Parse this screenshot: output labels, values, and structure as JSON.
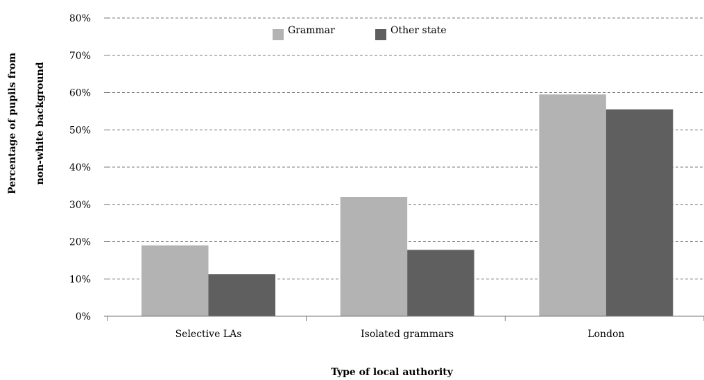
{
  "chart_data": {
    "type": "bar",
    "title": "",
    "xlabel": "Type of local authority",
    "ylabel_lines": [
      "Percentage of pupils from",
      "non-white background"
    ],
    "categories": [
      "Selective LAs",
      "Isolated grammars",
      "London"
    ],
    "series": [
      {
        "name": "Grammar",
        "values": [
          19,
          32,
          59.5
        ],
        "color": "#b3b3b3"
      },
      {
        "name": "Other state",
        "values": [
          11.3,
          17.8,
          55.5
        ],
        "color": "#5f5f5f"
      }
    ],
    "ylim": [
      0,
      80
    ],
    "yticks": [
      "0%",
      "10%",
      "20%",
      "30%",
      "40%",
      "50%",
      "60%",
      "70%",
      "80%"
    ],
    "grid": true,
    "legend_position": "top-center"
  }
}
